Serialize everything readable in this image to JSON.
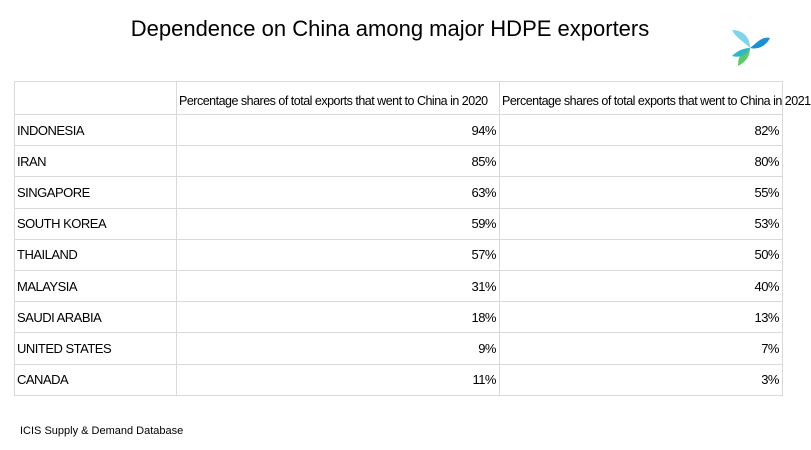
{
  "chart_data": {
    "type": "table",
    "title": "Dependence on China among major HDPE exporters",
    "columns": [
      "",
      "Percentage shares of total exports that went to China in 2020",
      "Percentage shares of total exports that went to China in 2021"
    ],
    "rows": [
      {
        "country": "INDONESIA",
        "y2020": "94%",
        "y2021": "82%"
      },
      {
        "country": "IRAN",
        "y2020": "85%",
        "y2021": "80%"
      },
      {
        "country": "SINGAPORE",
        "y2020": "63%",
        "y2021": "55%"
      },
      {
        "country": "SOUTH KOREA",
        "y2020": "59%",
        "y2021": "53%"
      },
      {
        "country": "THAILAND",
        "y2020": "57%",
        "y2021": "50%"
      },
      {
        "country": "MALAYSIA",
        "y2020": "31%",
        "y2021": "40%"
      },
      {
        "country": "SAUDI ARABIA",
        "y2020": "18%",
        "y2021": "13%"
      },
      {
        "country": "UNITED STATES",
        "y2020": "9%",
        "y2021": "7%"
      },
      {
        "country": "CANADA",
        "y2020": "11%",
        "y2021": "3%"
      }
    ],
    "source": "ICIS Supply  & Demand Database"
  },
  "logo": {
    "icon": "icis-logo-icon",
    "colors": [
      "#7fd4e8",
      "#2fb6c9",
      "#1e8fd0",
      "#5ec96a"
    ]
  }
}
